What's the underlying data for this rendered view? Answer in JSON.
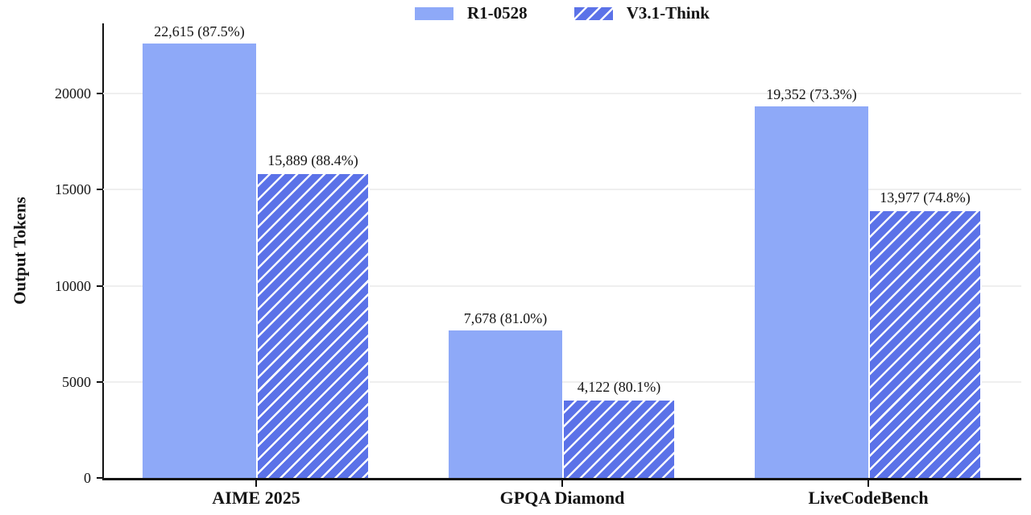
{
  "chart_data": {
    "type": "bar",
    "title": "",
    "ylabel": "Output Tokens",
    "xlabel": "",
    "categories": [
      "AIME 2025",
      "GPQA Diamond",
      "LiveCodeBench"
    ],
    "series": [
      {
        "name": "R1-0528",
        "style": "solid",
        "color": "#8ea9f8",
        "values": [
          22615,
          7678,
          19352
        ],
        "bar_labels": [
          "22,615 (87.5%)",
          "7,678 (81.0%)",
          "19,352 (73.3%)"
        ]
      },
      {
        "name": "V3.1-Think",
        "style": "hatched",
        "color": "#5b72e8",
        "hatch_color": "#ffffff",
        "values": [
          15889,
          4122,
          13977
        ],
        "bar_labels": [
          "15,889 (88.4%)",
          "4,122 (80.1%)",
          "13,977 (74.8%)"
        ]
      }
    ],
    "yticks": [
      0,
      5000,
      10000,
      15000,
      20000
    ],
    "ylim": [
      0,
      23700
    ],
    "grid": "horizontal",
    "gridline_color": "#efefef",
    "axis_color": "#111111",
    "text_color": "#141414",
    "legend_position": "top-center"
  }
}
